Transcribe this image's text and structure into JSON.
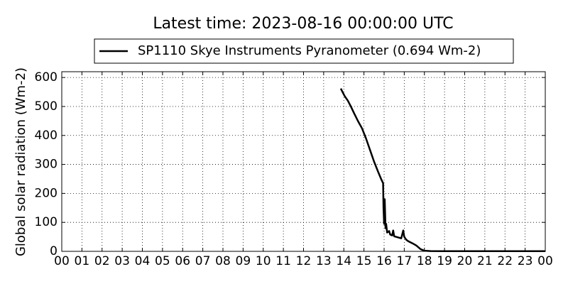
{
  "chart_data": {
    "type": "line",
    "title": "Latest time: 2023-08-16 00:00:00 UTC",
    "ylabel": "Global solar radiation (Wm-2)",
    "series": [
      {
        "name": "SP1110 Skye Instruments Pyranometer (0.694 Wm-2)",
        "color": "#000000",
        "x": [
          13.85,
          13.95,
          14.05,
          14.2,
          14.35,
          14.5,
          14.7,
          14.9,
          15.1,
          15.3,
          15.5,
          15.7,
          15.85,
          15.95,
          15.97,
          16.0,
          16.03,
          16.07,
          16.1,
          16.15,
          16.25,
          16.3,
          16.4,
          16.45,
          16.5,
          16.7,
          16.85,
          16.95,
          17.0,
          17.1,
          17.2,
          17.4,
          17.6,
          17.8,
          18.0,
          18.3,
          19,
          20,
          21,
          22,
          23,
          24
        ],
        "values": [
          562,
          548,
          535,
          520,
          500,
          478,
          450,
          425,
          390,
          350,
          310,
          275,
          250,
          235,
          150,
          95,
          180,
          80,
          95,
          65,
          70,
          58,
          55,
          72,
          52,
          48,
          45,
          72,
          50,
          40,
          35,
          28,
          20,
          8,
          2,
          1,
          0.7,
          0.7,
          0.7,
          0.7,
          0.7,
          0.7
        ]
      }
    ],
    "xlim": [
      0,
      24
    ],
    "xticks": [
      {
        "value": 0,
        "label": "00"
      },
      {
        "value": 1,
        "label": "01"
      },
      {
        "value": 2,
        "label": "02"
      },
      {
        "value": 3,
        "label": "03"
      },
      {
        "value": 4,
        "label": "04"
      },
      {
        "value": 5,
        "label": "05"
      },
      {
        "value": 6,
        "label": "06"
      },
      {
        "value": 7,
        "label": "07"
      },
      {
        "value": 8,
        "label": "08"
      },
      {
        "value": 9,
        "label": "09"
      },
      {
        "value": 10,
        "label": "10"
      },
      {
        "value": 11,
        "label": "11"
      },
      {
        "value": 12,
        "label": "12"
      },
      {
        "value": 13,
        "label": "13"
      },
      {
        "value": 14,
        "label": "14"
      },
      {
        "value": 15,
        "label": "15"
      },
      {
        "value": 16,
        "label": "16"
      },
      {
        "value": 17,
        "label": "17"
      },
      {
        "value": 18,
        "label": "18"
      },
      {
        "value": 19,
        "label": "19"
      },
      {
        "value": 20,
        "label": "20"
      },
      {
        "value": 21,
        "label": "21"
      },
      {
        "value": 22,
        "label": "22"
      },
      {
        "value": 23,
        "label": "23"
      },
      {
        "value": 24,
        "label": "00"
      }
    ],
    "ylim": [
      0,
      620
    ],
    "yticks": [
      0,
      100,
      200,
      300,
      400,
      500,
      600
    ],
    "grid": true,
    "legend": "top"
  }
}
